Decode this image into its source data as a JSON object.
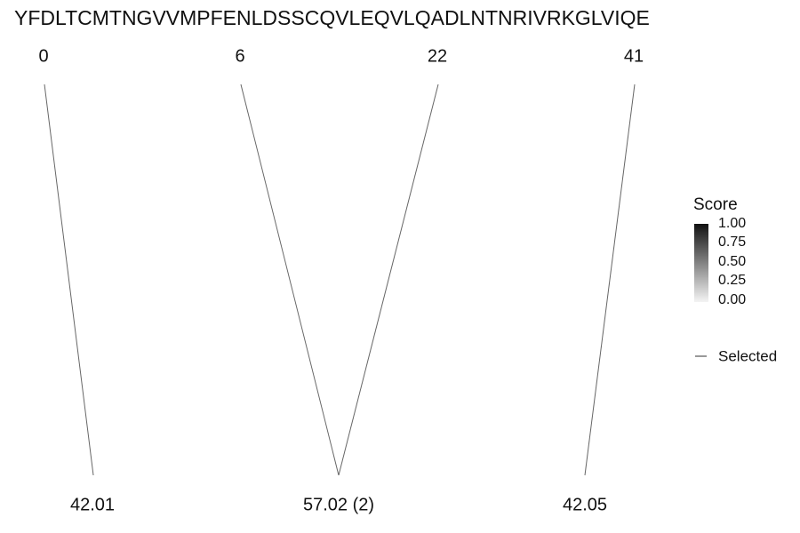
{
  "sequence": "YFDLTCMTNGVVMPFENLDSSCQVLEQVLQADLNTNRIVRKGLVIQE",
  "positions": [
    "0",
    "6",
    "22",
    "41"
  ],
  "masses": [
    "42.01",
    "57.02 (2)",
    "42.05"
  ],
  "legend": {
    "title": "Score",
    "ticks": [
      "1.00",
      "0.75",
      "0.50",
      "0.25",
      "0.00"
    ],
    "selected": "Selected"
  }
}
